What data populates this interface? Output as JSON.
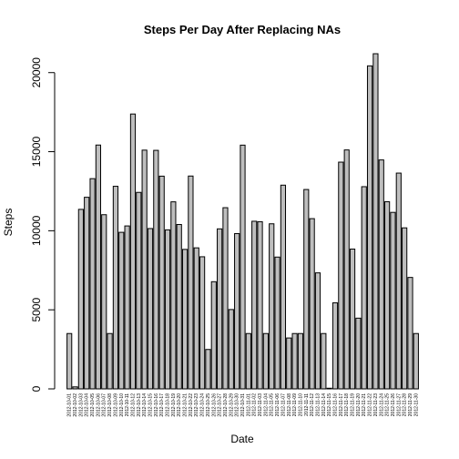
{
  "chart_data": {
    "type": "bar",
    "title": "Steps Per Day After Replacing NAs",
    "xlabel": "Date",
    "ylabel": "Steps",
    "ylim": [
      0,
      21194
    ],
    "yticks": [
      0,
      5000,
      10000,
      15000,
      20000
    ],
    "bar_fill": "#bebebe",
    "bar_stroke": "#000000",
    "categories": [
      "2012-10-01",
      "2012-10-02",
      "2012-10-03",
      "2012-10-04",
      "2012-10-05",
      "2012-10-06",
      "2012-10-07",
      "2012-10-08",
      "2012-10-09",
      "2012-10-10",
      "2012-10-11",
      "2012-10-12",
      "2012-10-13",
      "2012-10-14",
      "2012-10-15",
      "2012-10-16",
      "2012-10-17",
      "2012-10-18",
      "2012-10-19",
      "2012-10-20",
      "2012-10-21",
      "2012-10-22",
      "2012-10-23",
      "2012-10-24",
      "2012-10-25",
      "2012-10-26",
      "2012-10-27",
      "2012-10-28",
      "2012-10-29",
      "2012-10-30",
      "2012-10-31",
      "2012-11-01",
      "2012-11-02",
      "2012-11-03",
      "2012-11-04",
      "2012-11-05",
      "2012-11-06",
      "2012-11-07",
      "2012-11-08",
      "2012-11-09",
      "2012-11-10",
      "2012-11-11",
      "2012-11-12",
      "2012-11-13",
      "2012-11-14",
      "2012-11-15",
      "2012-11-16",
      "2012-11-17",
      "2012-11-18",
      "2012-11-19",
      "2012-11-20",
      "2012-11-21",
      "2012-11-22",
      "2012-11-23",
      "2012-11-24",
      "2012-11-25",
      "2012-11-26",
      "2012-11-27",
      "2012-11-28",
      "2012-11-29",
      "2012-11-30"
    ],
    "values": [
      3500,
      126,
      11352,
      12116,
      13294,
      15420,
      11015,
      3500,
      12811,
      9900,
      10304,
      17382,
      12426,
      15098,
      10139,
      15084,
      13452,
      10056,
      11829,
      10395,
      8821,
      13460,
      8918,
      8355,
      2492,
      6778,
      10119,
      11458,
      5018,
      9819,
      15414,
      3500,
      10600,
      10571,
      3500,
      10439,
      8334,
      12883,
      3219,
      3500,
      3500,
      12608,
      10765,
      7336,
      3500,
      41,
      5441,
      14339,
      15110,
      8841,
      4472,
      12787,
      20427,
      21194,
      14478,
      11834,
      11162,
      13646,
      10183,
      7047,
      3500
    ]
  }
}
